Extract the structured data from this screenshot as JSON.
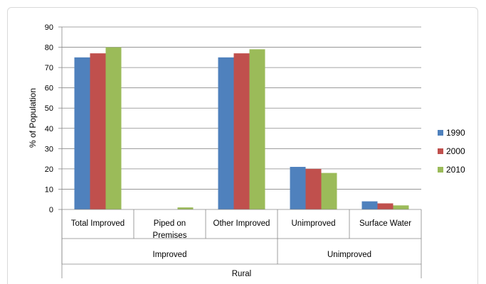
{
  "chart_data": {
    "type": "bar",
    "ylabel": "% of Population",
    "ylim": [
      0,
      90
    ],
    "yticks": [
      0,
      10,
      20,
      30,
      40,
      50,
      60,
      70,
      80,
      90
    ],
    "grid": true,
    "legend_position": "right",
    "categories": [
      "Total Improved",
      "Piped on Premises",
      "Other Improved",
      "Unimproved",
      "Surface Water"
    ],
    "category_lines": [
      [
        "Total Improved"
      ],
      [
        "Piped on",
        "Premises"
      ],
      [
        "Other Improved"
      ],
      [
        "Unimproved"
      ],
      [
        "Surface Water"
      ]
    ],
    "groups": [
      {
        "label": "Improved",
        "span": [
          0,
          2
        ]
      },
      {
        "label": "Unimproved",
        "span": [
          3,
          4
        ]
      }
    ],
    "supergroup": "Rural",
    "series": [
      {
        "name": "1990",
        "color": "#4F81BD",
        "values": [
          75,
          0,
          75,
          21,
          4
        ]
      },
      {
        "name": "2000",
        "color": "#C0504D",
        "values": [
          77,
          0,
          77,
          20,
          3
        ]
      },
      {
        "name": "2010",
        "color": "#9BBB59",
        "values": [
          80,
          1,
          79,
          18,
          2
        ]
      }
    ]
  }
}
